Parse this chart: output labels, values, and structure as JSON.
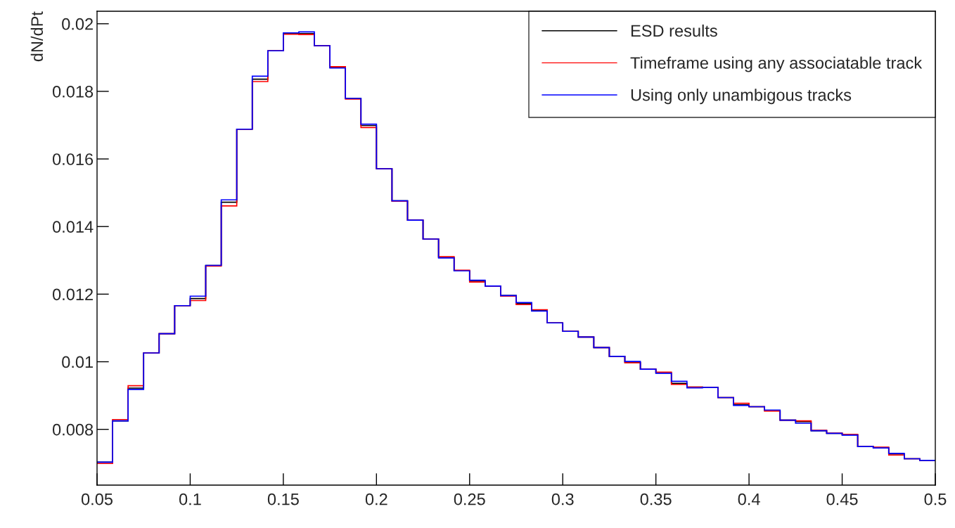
{
  "chart_data": {
    "type": "histogram",
    "ylabel": "dN/dPt",
    "bins": [
      0.05,
      0.05833,
      0.06667,
      0.075,
      0.08333,
      0.09167,
      0.1,
      0.10833,
      0.11667,
      0.125,
      0.13333,
      0.14167,
      0.15,
      0.15833,
      0.16667,
      0.175,
      0.18333,
      0.19167,
      0.2,
      0.20833,
      0.21667,
      0.225,
      0.23333,
      0.24167,
      0.25,
      0.25833,
      0.26667,
      0.275,
      0.28333,
      0.29167,
      0.3,
      0.30833,
      0.31667,
      0.325,
      0.33333,
      0.34167,
      0.35,
      0.35833,
      0.36667,
      0.375,
      0.38333,
      0.39167,
      0.4,
      0.40833,
      0.41667,
      0.425,
      0.43333,
      0.44167,
      0.45,
      0.45833,
      0.46667,
      0.475,
      0.48333,
      0.49167,
      0.5
    ],
    "series": [
      {
        "name": "ESD results",
        "color": "#000000",
        "values": [
          0.00703,
          0.00825,
          0.00922,
          0.01026,
          0.01083,
          0.01166,
          0.01187,
          0.01285,
          0.01472,
          0.01688,
          0.01836,
          0.0192,
          0.01971,
          0.01971,
          0.01935,
          0.01871,
          0.01779,
          0.01699,
          0.01571,
          0.01476,
          0.01419,
          0.01363,
          0.01309,
          0.01269,
          0.01239,
          0.01224,
          0.01196,
          0.01172,
          0.01151,
          0.01115,
          0.0109,
          0.01073,
          0.01042,
          0.01016,
          0.00998,
          0.00978,
          0.00967,
          0.00936,
          0.00925,
          0.00924,
          0.00894,
          0.00873,
          0.00867,
          0.00855,
          0.00827,
          0.00823,
          0.00796,
          0.00788,
          0.00784,
          0.00749,
          0.00746,
          0.00727,
          0.00713,
          0.00708
        ]
      },
      {
        "name": "Timeframe using any associatable track",
        "color": "#ff0000",
        "values": [
          0.00699,
          0.00829,
          0.00929,
          0.01026,
          0.01083,
          0.01166,
          0.01181,
          0.01283,
          0.01461,
          0.01688,
          0.01829,
          0.0192,
          0.01969,
          0.01968,
          0.01935,
          0.01873,
          0.01777,
          0.01693,
          0.01571,
          0.01475,
          0.01419,
          0.01363,
          0.01311,
          0.01271,
          0.01236,
          0.01224,
          0.01194,
          0.01169,
          0.01154,
          0.01115,
          0.0109,
          0.01073,
          0.01042,
          0.01016,
          0.00997,
          0.00978,
          0.00969,
          0.00933,
          0.00925,
          0.00924,
          0.00894,
          0.00877,
          0.00867,
          0.00854,
          0.00827,
          0.00825,
          0.00797,
          0.00789,
          0.00785,
          0.00749,
          0.00747,
          0.00724,
          0.00713,
          0.00708
        ]
      },
      {
        "name": "Using only unambigous tracks",
        "color": "#0000ff",
        "values": [
          0.00703,
          0.00825,
          0.00918,
          0.01026,
          0.01083,
          0.01166,
          0.01194,
          0.01285,
          0.01479,
          0.01688,
          0.01845,
          0.0192,
          0.01973,
          0.01976,
          0.01935,
          0.01869,
          0.01779,
          0.01703,
          0.01571,
          0.01476,
          0.01419,
          0.01363,
          0.01307,
          0.01269,
          0.01241,
          0.01224,
          0.01196,
          0.01175,
          0.0115,
          0.01115,
          0.0109,
          0.01073,
          0.01042,
          0.01016,
          0.01001,
          0.00978,
          0.00966,
          0.00942,
          0.00923,
          0.00924,
          0.00894,
          0.00871,
          0.00867,
          0.00857,
          0.00827,
          0.00818,
          0.00796,
          0.00788,
          0.00783,
          0.00749,
          0.00745,
          0.00729,
          0.00713,
          0.00708
        ]
      }
    ],
    "xlim": [
      0.05,
      0.5
    ],
    "xticks": [
      0.05,
      0.1,
      0.15,
      0.2,
      0.25,
      0.3,
      0.35,
      0.4,
      0.45,
      0.5
    ],
    "ylim": [
      0.00635,
      0.02037
    ],
    "yticks": [
      0.008,
      0.01,
      0.012,
      0.014,
      0.016,
      0.018,
      0.02
    ],
    "legend": "top right"
  }
}
